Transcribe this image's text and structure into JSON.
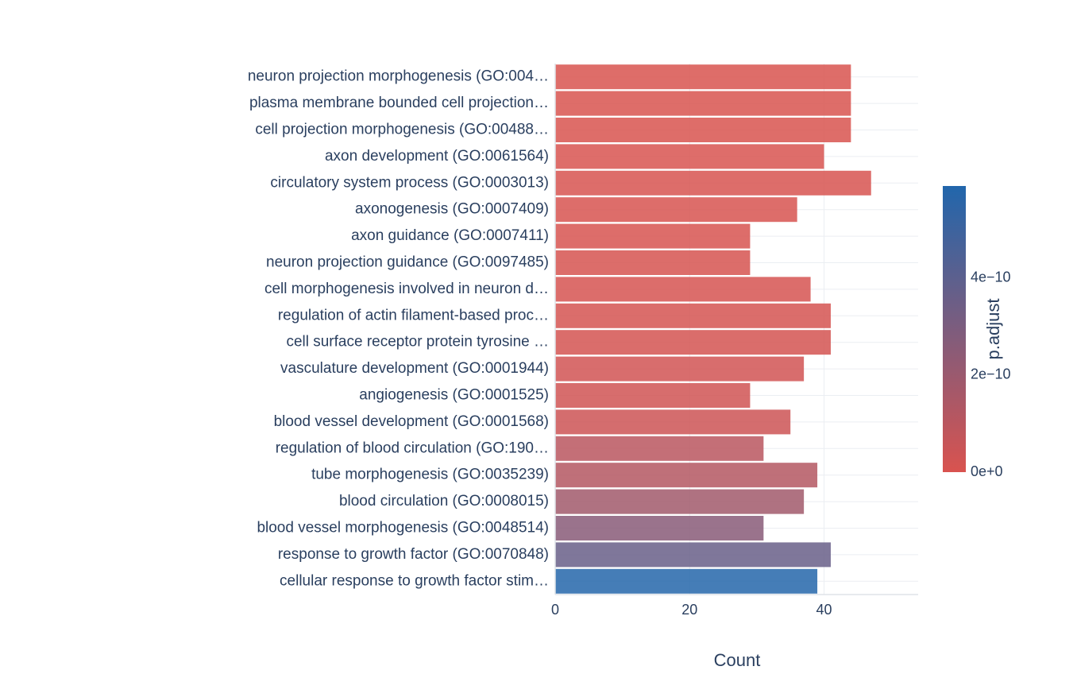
{
  "chart_data": {
    "type": "bar",
    "orientation": "horizontal",
    "x_title": "Count",
    "categories": [
      "neuron projection morphogenesis (GO:004…",
      "plasma membrane bounded cell projection…",
      "cell projection morphogenesis (GO:00488…",
      "axon development (GO:0061564)",
      "circulatory system process (GO:0003013)",
      "axonogenesis (GO:0007409)",
      "axon guidance (GO:0007411)",
      "neuron projection guidance (GO:0097485)",
      "cell morphogenesis involved in neuron d…",
      "regulation of actin filament-based proc…",
      "cell surface receptor protein tyrosine …",
      "vasculature development (GO:0001944)",
      "angiogenesis (GO:0001525)",
      "blood vessel development (GO:0001568)",
      "regulation of blood circulation (GO:190…",
      "tube morphogenesis (GO:0035239)",
      "blood circulation (GO:0008015)",
      "blood vessel morphogenesis (GO:0048514)",
      "response to growth factor (GO:0070848)",
      "cellular response to growth factor stim…"
    ],
    "values": [
      44,
      44,
      44,
      40,
      47,
      36,
      29,
      29,
      38,
      41,
      41,
      37,
      29,
      35,
      31,
      39,
      37,
      31,
      41,
      39
    ],
    "color_values": [
      2e-12,
      2e-12,
      3e-12,
      4e-12,
      5e-12,
      6e-12,
      8e-12,
      9e-12,
      1e-11,
      1.2e-11,
      1.5e-11,
      2.5e-11,
      3e-11,
      4e-11,
      1e-10,
      1.2e-10,
      1.8e-10,
      2.6e-10,
      3.6e-10,
      5.8e-10
    ],
    "xlim": [
      0,
      54
    ],
    "xticks": [
      0,
      20,
      40
    ],
    "grid": true,
    "colorbar": {
      "title": "p.adjust",
      "colorscale": [
        "#d9534f",
        "#2166ac"
      ],
      "lim": [
        0,
        5.9e-10
      ],
      "ticks": [
        {
          "value": 0,
          "label": "0e+0"
        },
        {
          "value": 2e-10,
          "label": "2e−10"
        },
        {
          "value": 4e-10,
          "label": "4e−10"
        }
      ]
    }
  }
}
